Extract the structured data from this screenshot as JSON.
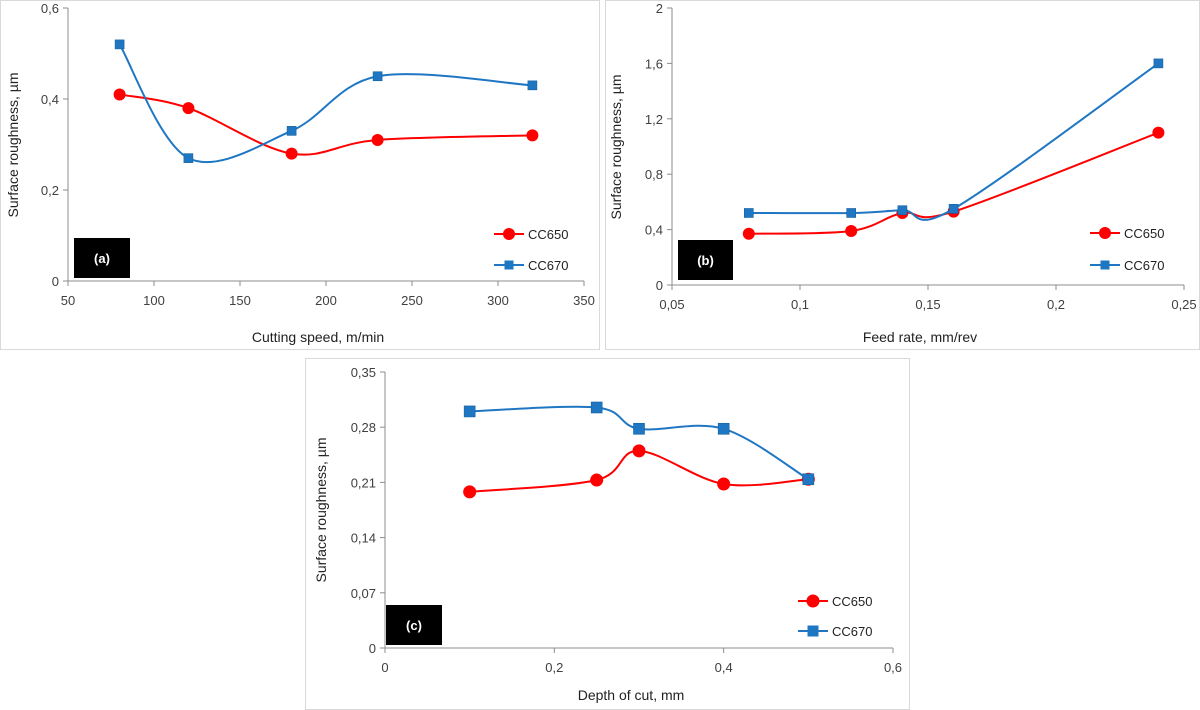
{
  "chart_data": [
    {
      "id": "a",
      "type": "line",
      "tag": "(a)",
      "xlabel": "Cutting speed, m/min",
      "ylabel": "Surface roughness, µm",
      "xlim": [
        50,
        350
      ],
      "ylim": [
        0,
        0.6
      ],
      "x_ticks": [
        50,
        100,
        150,
        200,
        250,
        300,
        350
      ],
      "x_tick_labels": [
        "50",
        "100",
        "150",
        "200",
        "250",
        "300",
        "350"
      ],
      "y_ticks": [
        0,
        0.2,
        0.4,
        0.6
      ],
      "y_tick_labels": [
        "0",
        "0,2",
        "0,4",
        "0,6"
      ],
      "grid": false,
      "legend_position": "bottom-right",
      "series": [
        {
          "name": "CC650",
          "color": "#ff0000",
          "marker": "circle",
          "x": [
            80,
            120,
            180,
            230,
            320
          ],
          "values": [
            0.41,
            0.38,
            0.28,
            0.31,
            0.32
          ]
        },
        {
          "name": "CC670",
          "color": "#1f77c4",
          "marker": "square",
          "x": [
            80,
            120,
            180,
            230,
            320
          ],
          "values": [
            0.52,
            0.27,
            0.33,
            0.45,
            0.43
          ]
        }
      ]
    },
    {
      "id": "b",
      "type": "line",
      "tag": "(b)",
      "xlabel": "Feed rate, mm/rev",
      "ylabel": "Surface roughness, µm",
      "xlim": [
        0.05,
        0.25
      ],
      "ylim": [
        0,
        2
      ],
      "x_ticks": [
        0.05,
        0.1,
        0.15,
        0.2,
        0.25
      ],
      "x_tick_labels": [
        "0,05",
        "0,1",
        "0,15",
        "0,2",
        "0,25"
      ],
      "y_ticks": [
        0,
        0.4,
        0.8,
        1.2,
        1.6,
        2
      ],
      "y_tick_labels": [
        "0",
        "0,4",
        "0,8",
        "1,2",
        "1,6",
        "2"
      ],
      "grid": false,
      "legend_position": "bottom-right",
      "series": [
        {
          "name": "CC650",
          "color": "#ff0000",
          "marker": "circle",
          "x": [
            0.08,
            0.12,
            0.14,
            0.16,
            0.24
          ],
          "values": [
            0.37,
            0.39,
            0.52,
            0.53,
            1.1
          ]
        },
        {
          "name": "CC670",
          "color": "#1f77c4",
          "marker": "square",
          "x": [
            0.08,
            0.12,
            0.14,
            0.16,
            0.24
          ],
          "values": [
            0.52,
            0.52,
            0.54,
            0.55,
            1.6
          ]
        }
      ]
    },
    {
      "id": "c",
      "type": "line",
      "tag": "(c)",
      "xlabel": "Depth of cut, mm",
      "ylabel": "Surface roughness, µm",
      "xlim": [
        0,
        0.6
      ],
      "ylim": [
        0,
        0.35
      ],
      "x_ticks": [
        0,
        0.2,
        0.4,
        0.6
      ],
      "x_tick_labels": [
        "0",
        "0,2",
        "0,4",
        "0,6"
      ],
      "y_ticks": [
        0,
        0.07,
        0.14,
        0.21,
        0.28,
        0.35
      ],
      "y_tick_labels": [
        "0",
        "0,07",
        "0,14",
        "0,21",
        "0,28",
        "0,35"
      ],
      "grid": false,
      "legend_position": "bottom-right",
      "series": [
        {
          "name": "CC650",
          "color": "#ff0000",
          "marker": "circle",
          "x": [
            0.1,
            0.25,
            0.3,
            0.4,
            0.5
          ],
          "values": [
            0.198,
            0.213,
            0.25,
            0.208,
            0.214
          ]
        },
        {
          "name": "CC670",
          "color": "#1f77c4",
          "marker": "square",
          "x": [
            0.1,
            0.25,
            0.3,
            0.4,
            0.5
          ],
          "values": [
            0.3,
            0.305,
            0.278,
            0.278,
            0.214
          ]
        }
      ]
    }
  ]
}
